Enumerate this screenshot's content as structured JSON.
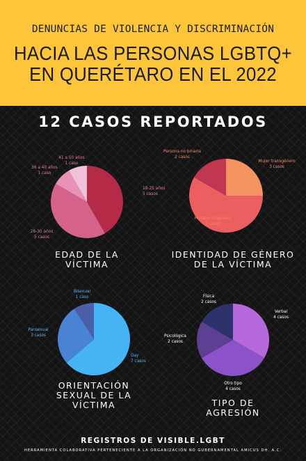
{
  "header": {
    "subtitle": "DENUNCIAS DE VIOLENCIA Y DISCRIMINACIÓN",
    "title_line1": "HACIA LAS PERSONAS LGBTQ+",
    "title_line2": "EN QUERÉTARO EN EL 2022"
  },
  "cases_heading": "12 CASOS REPORTADOS",
  "footer": {
    "title": "REGISTROS DE VISIBLE.LGBT",
    "subtitle": "HERRAMIENTA COLABORATIVA PERTENECIENTE A LA ORGANIZACIÓN NO GUBERNAMENTAL AMICUS DH, A.C."
  },
  "chart_data": [
    {
      "type": "pie",
      "title_lines": [
        "EDAD DE LA",
        "VÍCTIMA"
      ],
      "slices": [
        {
          "label": "18-25 años",
          "count_text": "5 casos",
          "value": 5,
          "color": "#b42a47"
        },
        {
          "label": "26-30 años",
          "count_text": "5 casos",
          "value": 5,
          "color": "#d4628a"
        },
        {
          "label": "36 a 40 años",
          "count_text": "1 caso",
          "value": 1,
          "color": "#e792b6"
        },
        {
          "label": "41 a 50 años",
          "count_text": "1 caso",
          "value": 1,
          "color": "#f2c2da"
        }
      ],
      "label_color": "#e47aa6"
    },
    {
      "type": "pie",
      "title_lines": [
        "IDENTIDAD DE GÉNERO",
        "DE LA VÍCTIMA"
      ],
      "slices": [
        {
          "label": "Mujer transgénero",
          "count_text": "3 casos",
          "value": 3,
          "color": "#f3935f"
        },
        {
          "label": "Hombre cisgénero",
          "count_text": "7 casos",
          "value": 7,
          "color": "#ec5e5f"
        },
        {
          "label": "Persona no binaria",
          "count_text": "2 casos",
          "value": 2,
          "color": "#c13650"
        }
      ],
      "label_color": "#f08a6a"
    },
    {
      "type": "pie",
      "title_lines": [
        "ORIENTACIÓN",
        "SEXUAL DE LA",
        "VÍCTIMA"
      ],
      "slices": [
        {
          "label": "Gay",
          "count_text": "7 casos",
          "value": 7,
          "color": "#45b4f5"
        },
        {
          "label": "Pansexual",
          "count_text": "3 casos",
          "value": 3,
          "color": "#4a82d4"
        },
        {
          "label": "Bisexual",
          "count_text": "1 caso",
          "value": 1,
          "color": "#4a5fa8"
        }
      ],
      "label_color": "#5ab4f0"
    },
    {
      "type": "pie",
      "title_lines": [
        "TIPO DE",
        "AGRESIÓN"
      ],
      "slices": [
        {
          "label": "Verbal",
          "count_text": "4 casos",
          "value": 4,
          "color": "#b669db"
        },
        {
          "label": "Otro tipo",
          "count_text": "4 casos",
          "value": 4,
          "color": "#8b52c9"
        },
        {
          "label": "Psicológica",
          "count_text": "2 casos",
          "value": 2,
          "color": "#5d3f94"
        },
        {
          "label": "Física",
          "count_text": "2 casos",
          "value": 2,
          "color": "#2e326b"
        }
      ],
      "label_color": "#ffffff"
    }
  ]
}
